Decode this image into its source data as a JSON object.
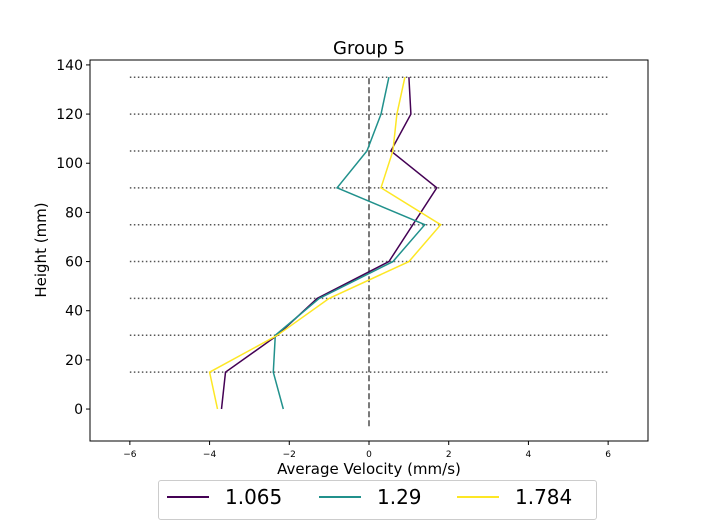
{
  "chart_data": {
    "type": "line",
    "title": "Group 5",
    "xlabel": "Average Velocity (mm/s)",
    "ylabel": "Height (mm)",
    "xlim": [
      -7,
      7
    ],
    "ylim": [
      -13,
      142
    ],
    "xticks": [
      "−6",
      "−4",
      "−2",
      "0",
      "2",
      "4",
      "6"
    ],
    "xtick_values": [
      -6,
      -4,
      -2,
      0,
      2,
      4,
      6
    ],
    "yticks": [
      "0",
      "20",
      "40",
      "60",
      "80",
      "100",
      "120",
      "140"
    ],
    "ytick_values": [
      0,
      20,
      40,
      60,
      80,
      100,
      120,
      140
    ],
    "reference_lines": {
      "horizontal_dotted_y": [
        15,
        30,
        45,
        60,
        75,
        90,
        105,
        120,
        135
      ],
      "horizontal_x_range": [
        -6,
        6
      ],
      "vertical_dashed_x": 0,
      "vertical_y_range": [
        -7,
        135
      ]
    },
    "legend_position": "bottom-center",
    "series": [
      {
        "name": "1.065",
        "color": "#440154",
        "x": [
          -3.7,
          -3.6,
          -2.3,
          -1.3,
          0.5,
          1.7,
          0.55,
          1.05,
          1.0
        ],
        "y": [
          0,
          15,
          30,
          45,
          60,
          90,
          105,
          120,
          135
        ]
      },
      {
        "name": "1.29",
        "color": "#21918c",
        "x": [
          -2.15,
          -2.4,
          -2.35,
          -1.25,
          0.6,
          1.4,
          -0.8,
          -0.05,
          0.3,
          0.5
        ],
        "y": [
          0,
          15,
          30,
          45,
          60,
          75,
          90,
          105,
          120,
          135
        ]
      },
      {
        "name": "1.784",
        "color": "#fde725",
        "x": [
          -3.8,
          -4.0,
          -2.3,
          -1.0,
          1.0,
          1.8,
          0.3,
          0.6,
          0.7,
          0.9
        ],
        "y": [
          0,
          15,
          30,
          45,
          60,
          75,
          90,
          105,
          120,
          135
        ]
      }
    ]
  }
}
